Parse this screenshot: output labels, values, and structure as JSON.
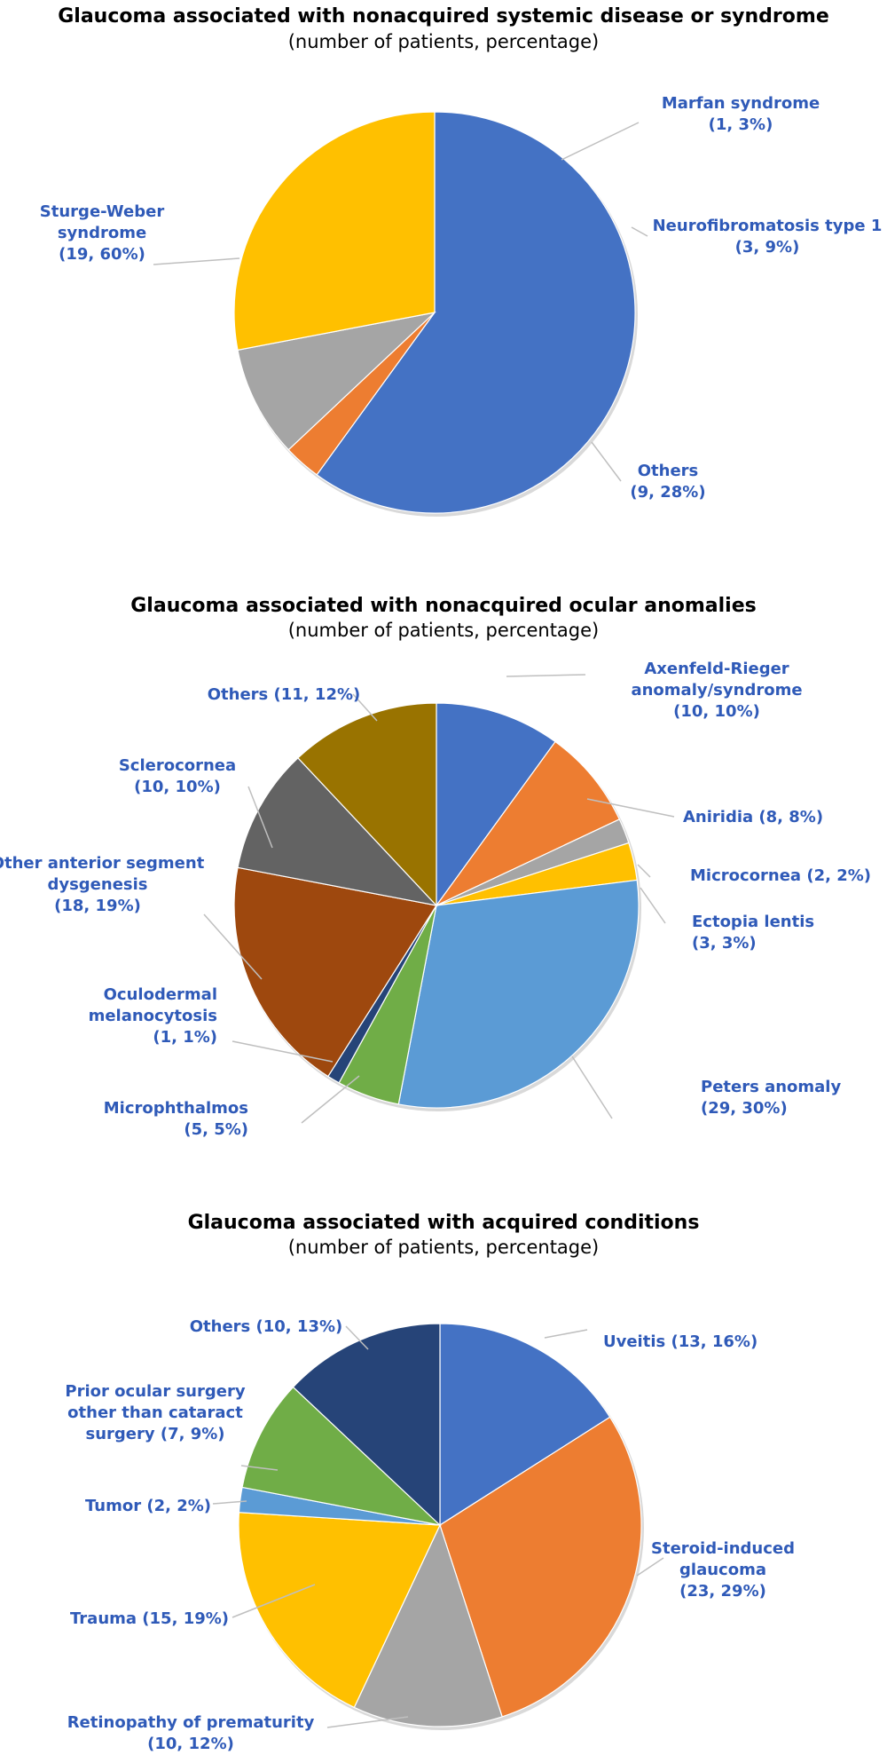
{
  "chart_data": [
    {
      "type": "pie",
      "title": "Glaucoma associated with nonacquired systemic disease or syndrome",
      "subtitle": "(number of patients, percentage)",
      "slices": [
        {
          "lines": [
            "Sturge-Weber",
            "syndrome",
            "(19, 60%)"
          ],
          "value": 60,
          "color": "#4472c4"
        },
        {
          "lines": [
            "Marfan syndrome",
            "(1, 3%)"
          ],
          "value": 3,
          "color": "#ed7d31"
        },
        {
          "lines": [
            "Neurofibromatosis type 1",
            "(3, 9%)"
          ],
          "value": 9,
          "color": "#a5a5a5"
        },
        {
          "lines": [
            "Others",
            "(9, 28%)"
          ],
          "value": 28,
          "color": "#ffc000"
        }
      ]
    },
    {
      "type": "pie",
      "title": "Glaucoma associated with nonacquired ocular anomalies",
      "subtitle": "(number of patients, percentage)",
      "slices": [
        {
          "lines": [
            "Axenfeld-Rieger",
            "anomaly/syndrome",
            "(10, 10%)"
          ],
          "value": 10,
          "color": "#4472c4"
        },
        {
          "lines": [
            "Aniridia (8, 8%)"
          ],
          "value": 8,
          "color": "#ed7d31"
        },
        {
          "lines": [
            "Microcornea (2, 2%)"
          ],
          "value": 2,
          "color": "#a5a5a5"
        },
        {
          "lines": [
            "Ectopia lentis",
            "(3, 3%)"
          ],
          "value": 3,
          "color": "#ffc000"
        },
        {
          "lines": [
            "Peters anomaly",
            "(29, 30%)"
          ],
          "value": 30,
          "color": "#5b9bd5"
        },
        {
          "lines": [
            "Microphthalmos",
            "(5, 5%)"
          ],
          "value": 5,
          "color": "#70ad47"
        },
        {
          "lines": [
            "Oculodermal",
            "melanocytosis",
            "(1, 1%)"
          ],
          "value": 1,
          "color": "#264478"
        },
        {
          "lines": [
            "Other anterior segment",
            "dysgenesis",
            "(18, 19%)"
          ],
          "value": 19,
          "color": "#9e480e"
        },
        {
          "lines": [
            "Sclerocornea",
            "(10, 10%)"
          ],
          "value": 10,
          "color": "#636363"
        },
        {
          "lines": [
            "Others (11, 12%)"
          ],
          "value": 12,
          "color": "#997300"
        }
      ]
    },
    {
      "type": "pie",
      "title": "Glaucoma associated with acquired conditions",
      "subtitle": "(number of patients, percentage)",
      "slices": [
        {
          "lines": [
            "Uveitis (13, 16%)"
          ],
          "value": 16,
          "color": "#4472c4"
        },
        {
          "lines": [
            "Steroid-induced",
            "glaucoma",
            "(23, 29%)"
          ],
          "value": 29,
          "color": "#ed7d31"
        },
        {
          "lines": [
            "Retinopathy of prematurity",
            "(10, 12%)"
          ],
          "value": 12,
          "color": "#a5a5a5"
        },
        {
          "lines": [
            "Trauma (15, 19%)"
          ],
          "value": 19,
          "color": "#ffc000"
        },
        {
          "lines": [
            "Tumor (2, 2%)"
          ],
          "value": 2,
          "color": "#5b9bd5"
        },
        {
          "lines": [
            "Prior ocular surgery",
            "other than cataract",
            "surgery  (7, 9%)"
          ],
          "value": 9,
          "color": "#70ad47"
        },
        {
          "lines": [
            "Others (10, 13%)"
          ],
          "value": 13,
          "color": "#264478"
        }
      ]
    }
  ]
}
